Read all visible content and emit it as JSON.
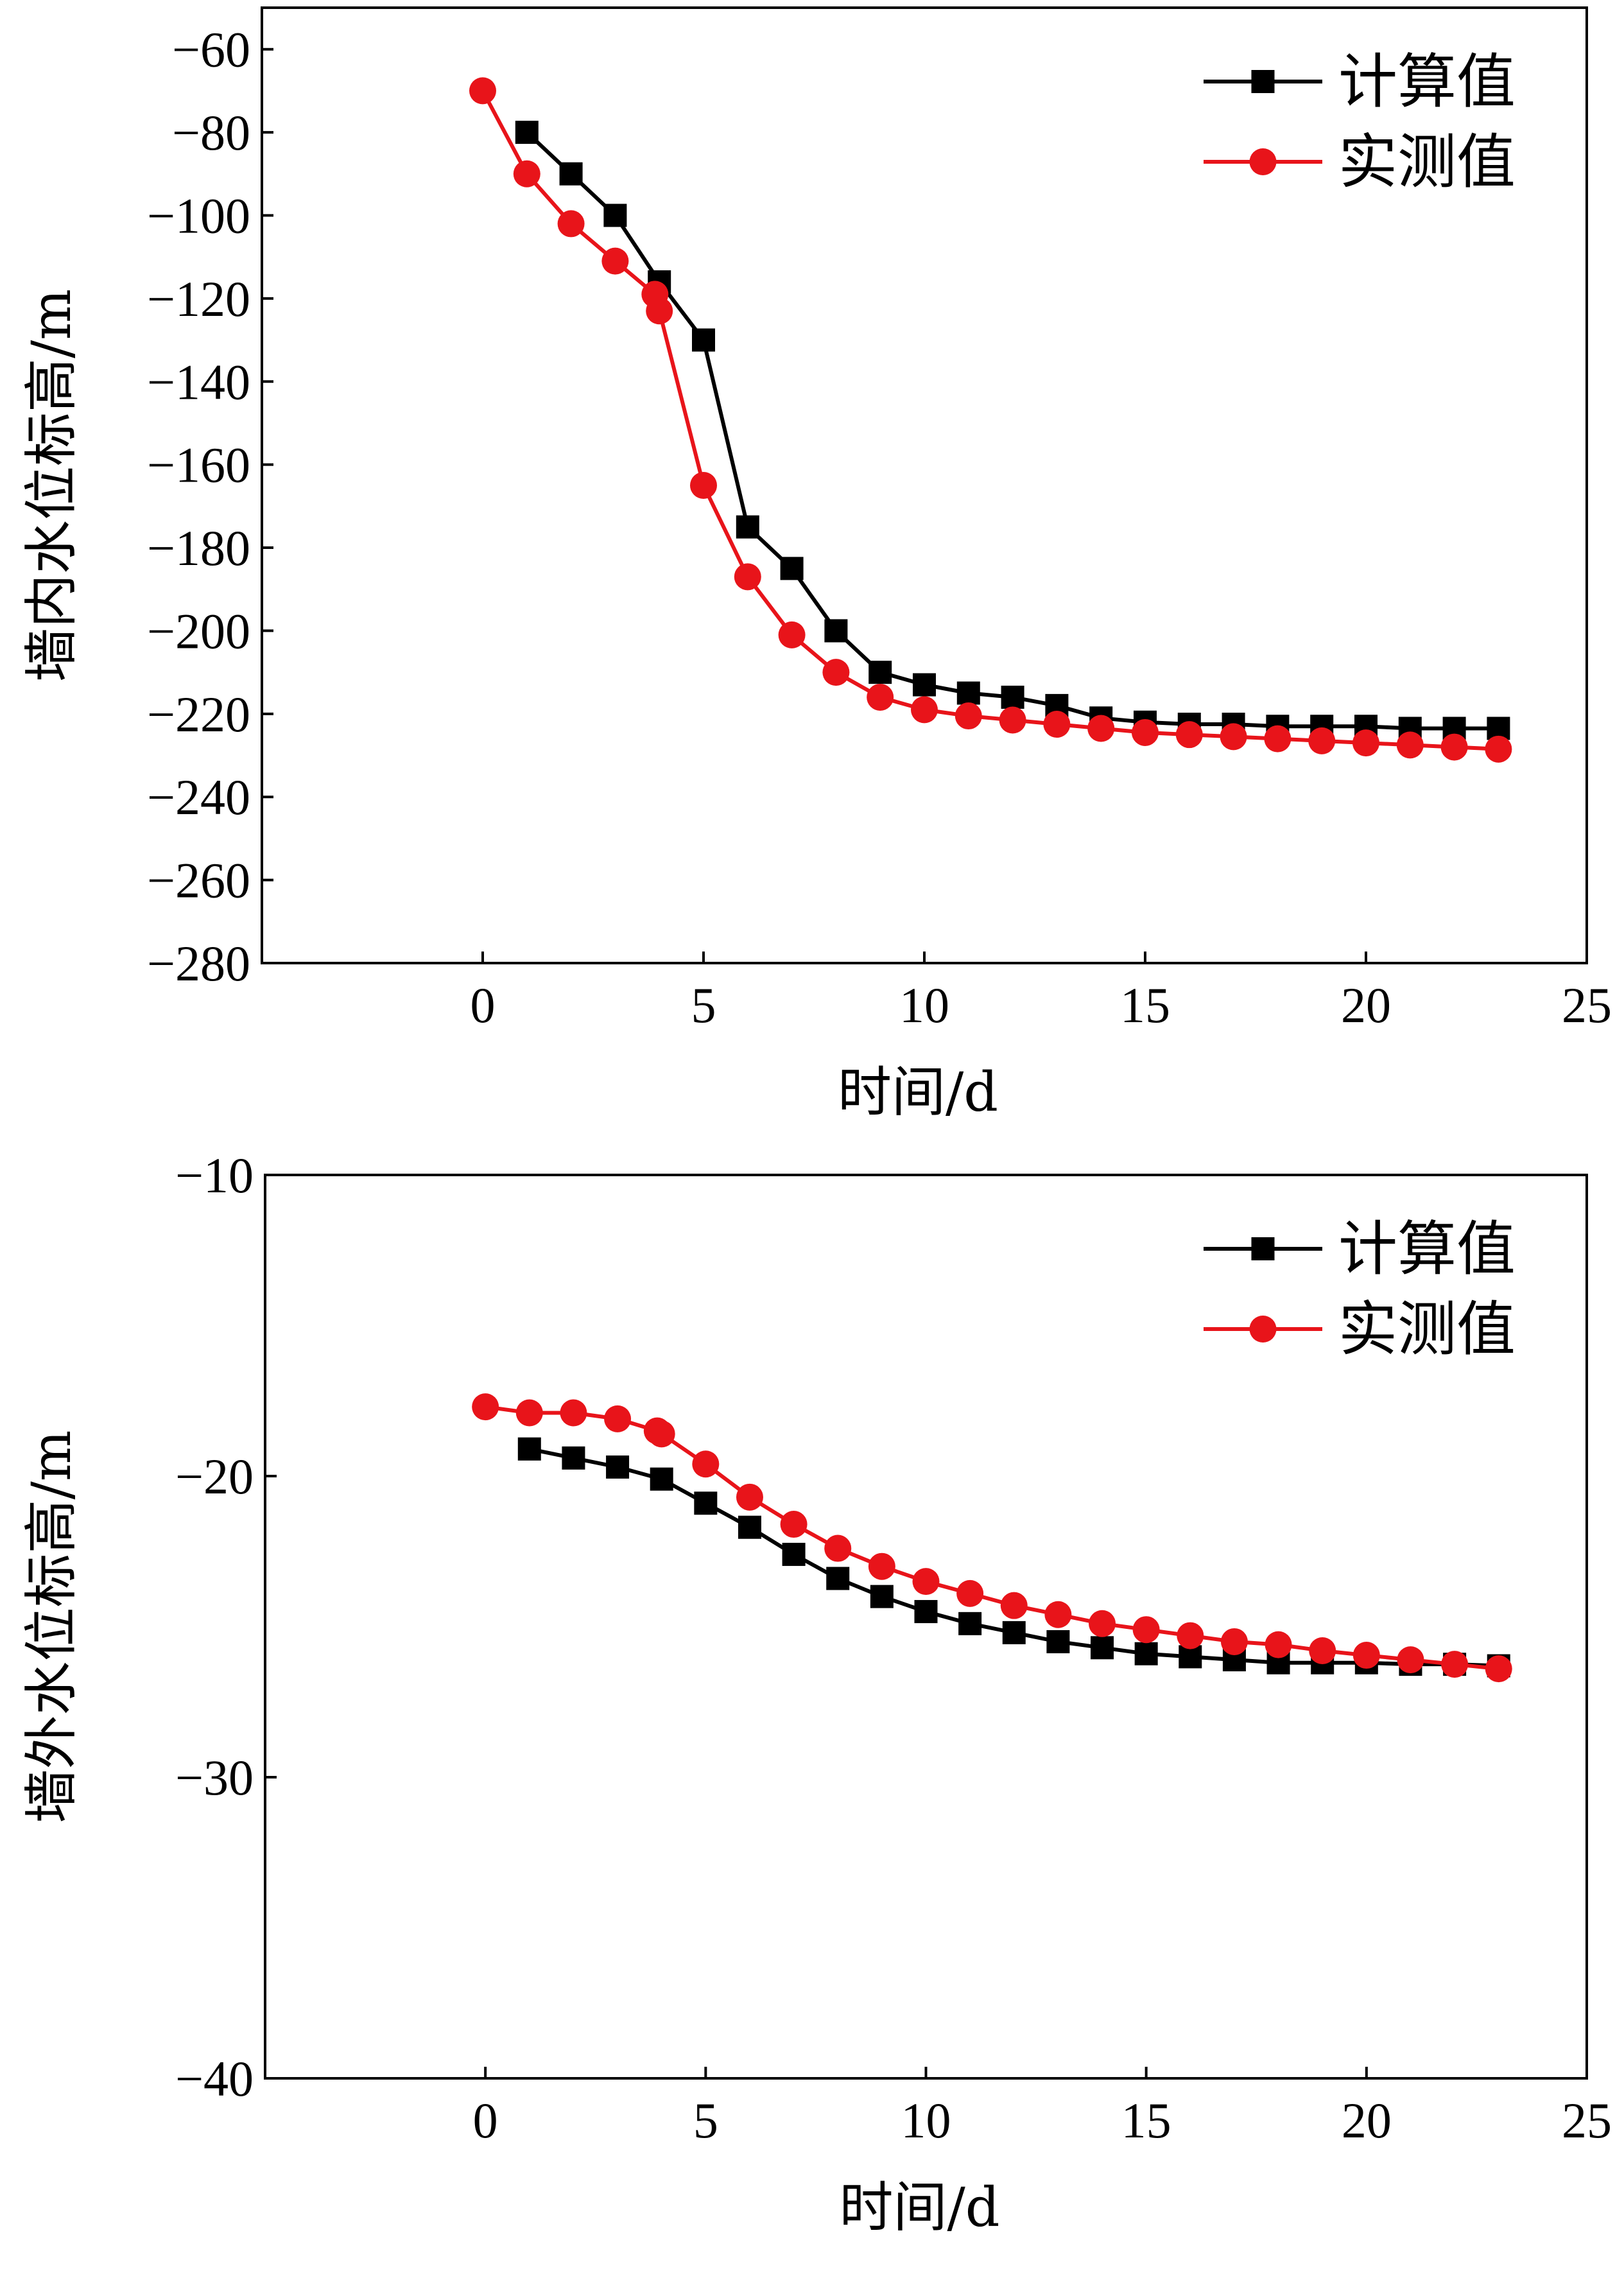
{
  "chart_data": [
    {
      "type": "line",
      "xlabel": "时间/d",
      "ylabel": "墙内水位标高/m",
      "xlim": [
        -5,
        25
      ],
      "ylim": [
        -280,
        -50
      ],
      "xticks": [
        0,
        5,
        10,
        15,
        20,
        25
      ],
      "yticks": [
        -60,
        -80,
        -100,
        -120,
        -140,
        -160,
        -180,
        -200,
        -220,
        -240,
        -260,
        -280
      ],
      "xtick_labels": [
        "0",
        "5",
        "10",
        "15",
        "20",
        "25"
      ],
      "ytick_labels": [
        "−60",
        "−80",
        "−100",
        "−120",
        "−140",
        "−160",
        "−180",
        "−200",
        "−220",
        "−240",
        "−260",
        "−280"
      ],
      "grid": false,
      "legend_position": "top-right",
      "series": [
        {
          "name": "计算值",
          "color": "#000000",
          "marker": "square",
          "x": [
            1,
            2,
            3,
            4,
            5,
            6,
            7,
            8,
            9,
            10,
            11,
            12,
            13,
            14,
            15,
            16,
            17,
            18,
            19,
            20,
            21,
            22,
            23
          ],
          "y": [
            -80,
            -90,
            -100,
            -116,
            -130,
            -175,
            -185,
            -200,
            -210,
            -213,
            -215,
            -216,
            -218,
            -221,
            -222,
            -222.5,
            -222.5,
            -223,
            -223,
            -223,
            -223.5,
            -223.5,
            -223.5
          ]
        },
        {
          "name": "实测值",
          "color": "#e8141a",
          "marker": "circle",
          "x": [
            0,
            1,
            2,
            3,
            3.9,
            4,
            5,
            6,
            7,
            8,
            9,
            10,
            11,
            12,
            13,
            14,
            15,
            16,
            17,
            18,
            19,
            20,
            21,
            22,
            23
          ],
          "y": [
            -70,
            -90,
            -102,
            -111,
            -119,
            -123,
            -165,
            -187,
            -201,
            -210,
            -216,
            -219,
            -220.5,
            -221.5,
            -222.5,
            -223.5,
            -224.5,
            -225,
            -225.5,
            -226,
            -226.5,
            -227,
            -227.5,
            -228,
            -228.5
          ]
        }
      ]
    },
    {
      "type": "line",
      "xlabel": "时间/d",
      "ylabel": "墙外水位标高/m",
      "xlim": [
        -5,
        25
      ],
      "ylim": [
        -40,
        -10
      ],
      "xticks": [
        0,
        5,
        10,
        15,
        20,
        25
      ],
      "yticks": [
        -10,
        -20,
        -30,
        -40
      ],
      "xtick_labels": [
        "0",
        "5",
        "10",
        "15",
        "20",
        "25"
      ],
      "ytick_labels": [
        "−10",
        "−20",
        "−30",
        "−40"
      ],
      "grid": false,
      "legend_position": "top-right",
      "series": [
        {
          "name": "计算值",
          "color": "#000000",
          "marker": "square",
          "x": [
            1,
            2,
            3,
            4,
            5,
            6,
            7,
            8,
            9,
            10,
            11,
            12,
            13,
            14,
            15,
            16,
            17,
            18,
            19,
            20,
            21,
            22,
            23
          ],
          "y": [
            -19.1,
            -19.4,
            -19.7,
            -20.1,
            -20.9,
            -21.7,
            -22.6,
            -23.4,
            -24.0,
            -24.5,
            -24.9,
            -25.2,
            -25.5,
            -25.7,
            -25.9,
            -26.0,
            -26.1,
            -26.2,
            -26.2,
            -26.2,
            -26.25,
            -26.25,
            -26.3
          ]
        },
        {
          "name": "实测值",
          "color": "#e8141a",
          "marker": "circle",
          "x": [
            0,
            1,
            2,
            3,
            3.9,
            4,
            5,
            6,
            7,
            8,
            9,
            10,
            11,
            12,
            13,
            14,
            15,
            16,
            17,
            18,
            19,
            20,
            21,
            22,
            23
          ],
          "y": [
            -17.7,
            -17.9,
            -17.9,
            -18.1,
            -18.5,
            -18.6,
            -19.6,
            -20.7,
            -21.6,
            -22.4,
            -23.0,
            -23.5,
            -23.9,
            -24.3,
            -24.6,
            -24.9,
            -25.1,
            -25.3,
            -25.5,
            -25.6,
            -25.8,
            -25.95,
            -26.1,
            -26.25,
            -26.4
          ]
        }
      ]
    }
  ]
}
